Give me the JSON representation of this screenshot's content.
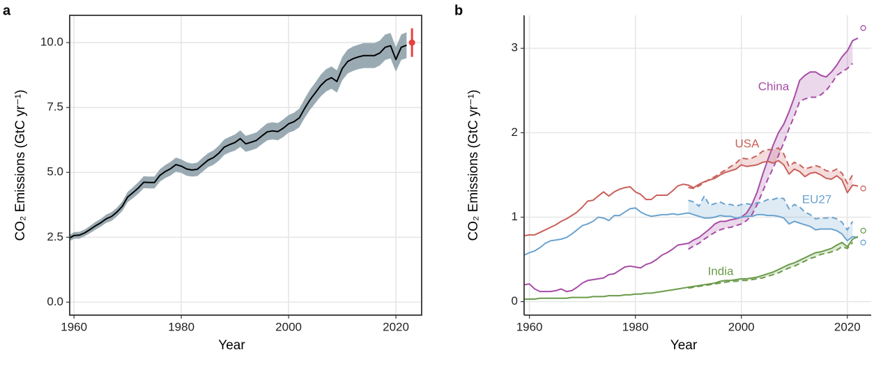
{
  "chart_data": [
    {
      "type": "line",
      "label": "a",
      "x_label": "Year",
      "y_label": "CO₂ Emissions (GtC yr⁻¹)",
      "xlim": [
        1959.2,
        2024.8
      ],
      "xticks": [
        1960,
        1980,
        2000,
        2020
      ],
      "ylim": [
        -0.5,
        11.05
      ],
      "yticks": [
        {
          "value": 0,
          "label": "0.0"
        },
        2.5,
        {
          "value": 5,
          "label": "5.0"
        },
        7.5,
        {
          "value": 10,
          "label": "10.0"
        }
      ],
      "grid": true,
      "x": [
        1959,
        1960,
        1961,
        1962,
        1963,
        1964,
        1965,
        1966,
        1967,
        1968,
        1969,
        1970,
        1971,
        1972,
        1973,
        1974,
        1975,
        1976,
        1977,
        1978,
        1979,
        1980,
        1981,
        1982,
        1983,
        1984,
        1985,
        1986,
        1987,
        1988,
        1989,
        1990,
        1991,
        1992,
        1993,
        1994,
        1995,
        1996,
        1997,
        1998,
        1999,
        2000,
        2001,
        2002,
        2003,
        2004,
        2005,
        2006,
        2007,
        2008,
        2009,
        2010,
        2011,
        2012,
        2013,
        2014,
        2015,
        2016,
        2017,
        2018,
        2019,
        2020,
        2021,
        2022
      ],
      "series": [
        {
          "color": "#000000",
          "band_color": "#9aaab3",
          "values": [
            2.45,
            2.57,
            2.58,
            2.67,
            2.8,
            2.94,
            3.06,
            3.21,
            3.3,
            3.47,
            3.69,
            4.05,
            4.22,
            4.4,
            4.62,
            4.61,
            4.61,
            4.88,
            5.03,
            5.14,
            5.3,
            5.24,
            5.13,
            5.09,
            5.12,
            5.3,
            5.47,
            5.57,
            5.74,
            5.97,
            6.07,
            6.15,
            6.3,
            6.1,
            6.16,
            6.23,
            6.4,
            6.56,
            6.6,
            6.57,
            6.7,
            6.87,
            6.95,
            7.1,
            7.47,
            7.8,
            8.07,
            8.35,
            8.55,
            8.65,
            8.5,
            9.0,
            9.27,
            9.38,
            9.45,
            9.5,
            9.5,
            9.5,
            9.6,
            9.82,
            9.88,
            9.35,
            9.82,
            9.9
          ],
          "errors": [
            0.12,
            0.13,
            0.13,
            0.13,
            0.14,
            0.15,
            0.15,
            0.16,
            0.17,
            0.17,
            0.18,
            0.2,
            0.21,
            0.22,
            0.23,
            0.23,
            0.23,
            0.24,
            0.25,
            0.26,
            0.27,
            0.26,
            0.26,
            0.25,
            0.26,
            0.27,
            0.27,
            0.28,
            0.29,
            0.3,
            0.3,
            0.31,
            0.32,
            0.31,
            0.31,
            0.31,
            0.32,
            0.33,
            0.33,
            0.33,
            0.34,
            0.34,
            0.35,
            0.36,
            0.37,
            0.39,
            0.4,
            0.42,
            0.43,
            0.43,
            0.43,
            0.45,
            0.46,
            0.47,
            0.47,
            0.48,
            0.48,
            0.48,
            0.48,
            0.49,
            0.49,
            0.47,
            0.49,
            0.5
          ]
        }
      ],
      "projection": {
        "x": 2023,
        "value": 10.0,
        "error": 0.55,
        "color": "#e8403f"
      }
    },
    {
      "type": "line",
      "label": "b",
      "x_label": "Year",
      "y_label": "CO₂ Emissions (GtC yr⁻¹)",
      "xlim": [
        1959,
        2024.5
      ],
      "xticks": [
        1960,
        1980,
        2000,
        2020
      ],
      "ylim": [
        -0.16,
        3.39
      ],
      "yticks": [
        0,
        1,
        2,
        3
      ],
      "grid": true,
      "x": [
        1959,
        1960,
        1961,
        1962,
        1963,
        1964,
        1965,
        1966,
        1967,
        1968,
        1969,
        1970,
        1971,
        1972,
        1973,
        1974,
        1975,
        1976,
        1977,
        1978,
        1979,
        1980,
        1981,
        1982,
        1983,
        1984,
        1985,
        1986,
        1987,
        1988,
        1989,
        1990,
        1991,
        1992,
        1993,
        1994,
        1995,
        1996,
        1997,
        1998,
        1999,
        2000,
        2001,
        2002,
        2003,
        2004,
        2005,
        2006,
        2007,
        2008,
        2009,
        2010,
        2011,
        2012,
        2013,
        2014,
        2015,
        2016,
        2017,
        2018,
        2019,
        2020,
        2021,
        2022
      ],
      "consumption_x": [
        1990,
        1991,
        1992,
        1993,
        1994,
        1995,
        1996,
        1997,
        1998,
        1999,
        2000,
        2001,
        2002,
        2003,
        2004,
        2005,
        2006,
        2007,
        2008,
        2009,
        2010,
        2011,
        2012,
        2013,
        2014,
        2015,
        2016,
        2017,
        2018,
        2019,
        2020,
        2021
      ],
      "projection_x": 2023,
      "series": [
        {
          "name": "China",
          "color": "#a64ca6",
          "values": [
            0.2,
            0.21,
            0.15,
            0.12,
            0.12,
            0.12,
            0.13,
            0.15,
            0.12,
            0.13,
            0.17,
            0.22,
            0.25,
            0.26,
            0.27,
            0.28,
            0.32,
            0.33,
            0.37,
            0.41,
            0.42,
            0.41,
            0.4,
            0.44,
            0.46,
            0.5,
            0.55,
            0.58,
            0.62,
            0.67,
            0.68,
            0.69,
            0.73,
            0.76,
            0.81,
            0.86,
            0.92,
            0.95,
            0.95,
            0.97,
            0.98,
            1.0,
            1.05,
            1.15,
            1.3,
            1.5,
            1.68,
            1.85,
            2.0,
            2.1,
            2.25,
            2.42,
            2.62,
            2.68,
            2.72,
            2.72,
            2.68,
            2.66,
            2.72,
            2.8,
            2.9,
            2.97,
            3.09,
            3.12
          ],
          "consumption": [
            0.62,
            0.66,
            0.69,
            0.74,
            0.78,
            0.82,
            0.85,
            0.87,
            0.88,
            0.9,
            0.92,
            0.96,
            1.03,
            1.15,
            1.3,
            1.45,
            1.58,
            1.73,
            1.88,
            2.05,
            2.2,
            2.37,
            2.4,
            2.42,
            2.42,
            2.45,
            2.5,
            2.58,
            2.68,
            2.72,
            2.76,
            2.82
          ],
          "projection": 3.24
        },
        {
          "name": "USA",
          "color": "#c9605a",
          "values": [
            0.78,
            0.79,
            0.79,
            0.82,
            0.85,
            0.88,
            0.91,
            0.95,
            0.98,
            1.02,
            1.06,
            1.12,
            1.19,
            1.2,
            1.25,
            1.3,
            1.25,
            1.3,
            1.33,
            1.35,
            1.36,
            1.3,
            1.27,
            1.21,
            1.21,
            1.26,
            1.26,
            1.26,
            1.31,
            1.37,
            1.39,
            1.38,
            1.35,
            1.39,
            1.42,
            1.44,
            1.46,
            1.5,
            1.53,
            1.55,
            1.57,
            1.62,
            1.6,
            1.61,
            1.62,
            1.65,
            1.66,
            1.64,
            1.67,
            1.62,
            1.51,
            1.57,
            1.54,
            1.48,
            1.52,
            1.53,
            1.5,
            1.46,
            1.45,
            1.49,
            1.44,
            1.29,
            1.38,
            1.37
          ],
          "consumption": [
            1.35,
            1.34,
            1.37,
            1.41,
            1.45,
            1.48,
            1.52,
            1.56,
            1.6,
            1.64,
            1.7,
            1.69,
            1.7,
            1.73,
            1.78,
            1.8,
            1.8,
            1.82,
            1.75,
            1.6,
            1.65,
            1.62,
            1.57,
            1.59,
            1.61,
            1.59,
            1.55,
            1.54,
            1.57,
            1.52,
            1.4,
            1.5
          ],
          "projection": 1.34
        },
        {
          "name": "EU27",
          "color": "#6ba3cf",
          "values": [
            0.55,
            0.58,
            0.6,
            0.64,
            0.69,
            0.72,
            0.73,
            0.74,
            0.76,
            0.8,
            0.85,
            0.9,
            0.92,
            0.95,
            1.0,
            0.99,
            0.96,
            1.02,
            1.02,
            1.06,
            1.1,
            1.11,
            1.06,
            1.03,
            1.01,
            1.02,
            1.03,
            1.03,
            1.04,
            1.03,
            1.04,
            1.05,
            1.03,
            1.01,
            0.99,
            0.99,
            1.0,
            1.02,
            1.01,
            1.01,
            0.99,
            1.0,
            1.01,
            1.01,
            1.03,
            1.03,
            1.02,
            1.02,
            1.01,
            0.99,
            0.92,
            0.95,
            0.93,
            0.91,
            0.89,
            0.85,
            0.86,
            0.86,
            0.86,
            0.84,
            0.8,
            0.72,
            0.77,
            0.76
          ],
          "consumption": [
            1.2,
            1.18,
            1.13,
            1.25,
            1.14,
            1.16,
            1.18,
            1.15,
            1.15,
            1.13,
            1.15,
            1.16,
            1.15,
            1.17,
            1.18,
            1.21,
            1.21,
            1.23,
            1.22,
            1.1,
            1.15,
            1.12,
            1.06,
            1.03,
            0.98,
            0.99,
            0.99,
            1.0,
            0.98,
            0.94,
            0.85,
            0.95
          ],
          "projection": 0.7
        },
        {
          "name": "India",
          "color": "#6a9a4a",
          "values": [
            0.03,
            0.03,
            0.03,
            0.04,
            0.04,
            0.04,
            0.04,
            0.04,
            0.04,
            0.05,
            0.05,
            0.05,
            0.05,
            0.06,
            0.06,
            0.06,
            0.07,
            0.07,
            0.07,
            0.08,
            0.08,
            0.09,
            0.09,
            0.1,
            0.1,
            0.11,
            0.12,
            0.13,
            0.14,
            0.15,
            0.16,
            0.17,
            0.18,
            0.19,
            0.2,
            0.21,
            0.22,
            0.24,
            0.25,
            0.25,
            0.26,
            0.27,
            0.27,
            0.28,
            0.29,
            0.31,
            0.33,
            0.35,
            0.38,
            0.41,
            0.44,
            0.46,
            0.49,
            0.52,
            0.55,
            0.58,
            0.59,
            0.61,
            0.63,
            0.67,
            0.7,
            0.65,
            0.74,
            0.77
          ],
          "consumption": [
            0.16,
            0.17,
            0.18,
            0.19,
            0.2,
            0.21,
            0.22,
            0.23,
            0.24,
            0.24,
            0.25,
            0.25,
            0.26,
            0.27,
            0.28,
            0.3,
            0.32,
            0.34,
            0.37,
            0.4,
            0.42,
            0.45,
            0.48,
            0.51,
            0.53,
            0.56,
            0.57,
            0.59,
            0.61,
            0.65,
            0.63,
            0.7
          ],
          "projection": 0.84
        }
      ]
    }
  ]
}
